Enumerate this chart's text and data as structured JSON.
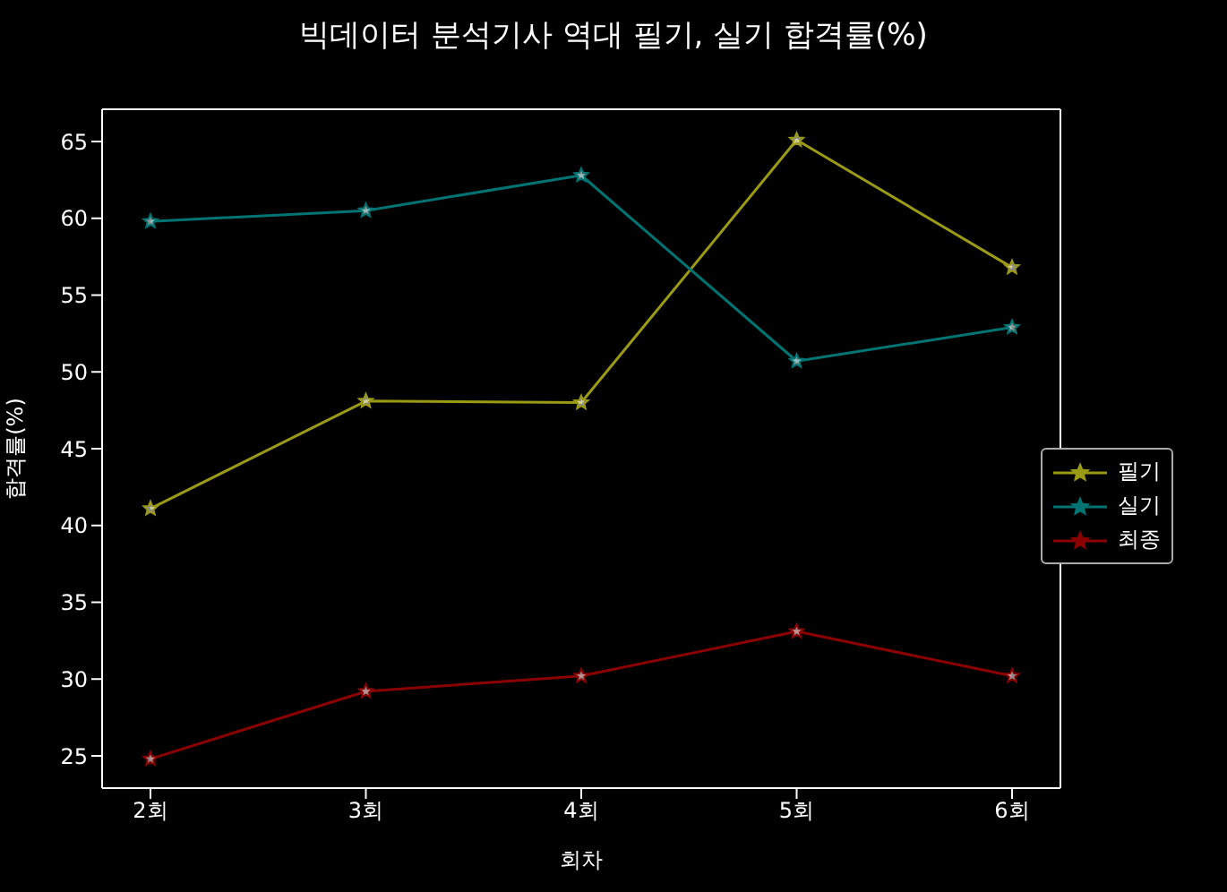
{
  "chart_data": {
    "type": "line",
    "title": "빅데이터 분석기사 역대 필기, 실기 합격률(%)",
    "xlabel": "회차",
    "ylabel": "합격률(%)",
    "categories": [
      "2회",
      "3회",
      "4회",
      "5회",
      "6회"
    ],
    "series": [
      {
        "name": "필기",
        "color": "#9a9a14",
        "values": [
          41.1,
          48.1,
          48.0,
          65.1,
          56.8
        ]
      },
      {
        "name": "실기",
        "color": "#007373",
        "values": [
          59.8,
          60.5,
          62.8,
          50.7,
          52.9
        ]
      },
      {
        "name": "최종",
        "color": "#8b0000",
        "values": [
          24.8,
          29.2,
          30.2,
          33.1,
          30.2
        ]
      }
    ],
    "ylim": [
      22.9,
      67.1
    ],
    "yticks": [
      25,
      30,
      35,
      40,
      45,
      50,
      55,
      60,
      65
    ],
    "legend": "right",
    "marker": "star",
    "line_style": "solid"
  }
}
